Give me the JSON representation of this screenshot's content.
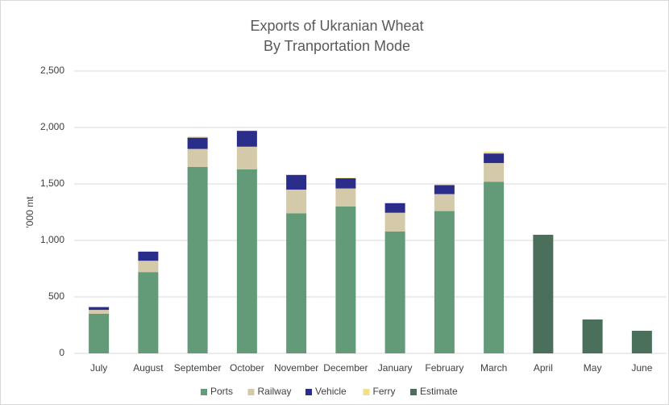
{
  "chart_data": {
    "type": "stacked_bar",
    "title": "Exports of Ukranian Wheat",
    "subtitle": "By Tranportation Mode",
    "y_label": "'000 mt",
    "categories": [
      "July",
      "August",
      "September",
      "October",
      "November",
      "December",
      "January",
      "February",
      "March",
      "April",
      "May",
      "June"
    ],
    "series": [
      {
        "name": "Ports",
        "color": "#639a78",
        "values": [
          350,
          720,
          1650,
          1630,
          1240,
          1300,
          1080,
          1260,
          1520,
          null,
          null,
          null
        ]
      },
      {
        "name": "Railway",
        "color": "#d4c9a9",
        "values": [
          35,
          100,
          160,
          200,
          210,
          160,
          165,
          150,
          165,
          null,
          null,
          null
        ]
      },
      {
        "name": "Vehicle",
        "color": "#2a2d8a",
        "values": [
          25,
          80,
          100,
          140,
          130,
          90,
          85,
          80,
          85,
          null,
          null,
          null
        ]
      },
      {
        "name": "Ferry",
        "color": "#f0e08c",
        "values": [
          0,
          5,
          10,
          0,
          0,
          5,
          0,
          5,
          15,
          null,
          null,
          null
        ]
      },
      {
        "name": "Estimate",
        "color": "#4a6f5a",
        "values": [
          null,
          null,
          null,
          null,
          null,
          null,
          null,
          null,
          null,
          1050,
          300,
          200
        ]
      }
    ],
    "ylim": [
      0,
      2500
    ],
    "yticks": [
      0,
      500,
      {
        "value": 1000,
        "label": "1,000"
      },
      {
        "value": 1500,
        "label": "1,500"
      },
      {
        "value": 2000,
        "label": "2,000"
      },
      {
        "value": 2500,
        "label": "2,500"
      }
    ],
    "grid": true,
    "legend": "bottom"
  }
}
